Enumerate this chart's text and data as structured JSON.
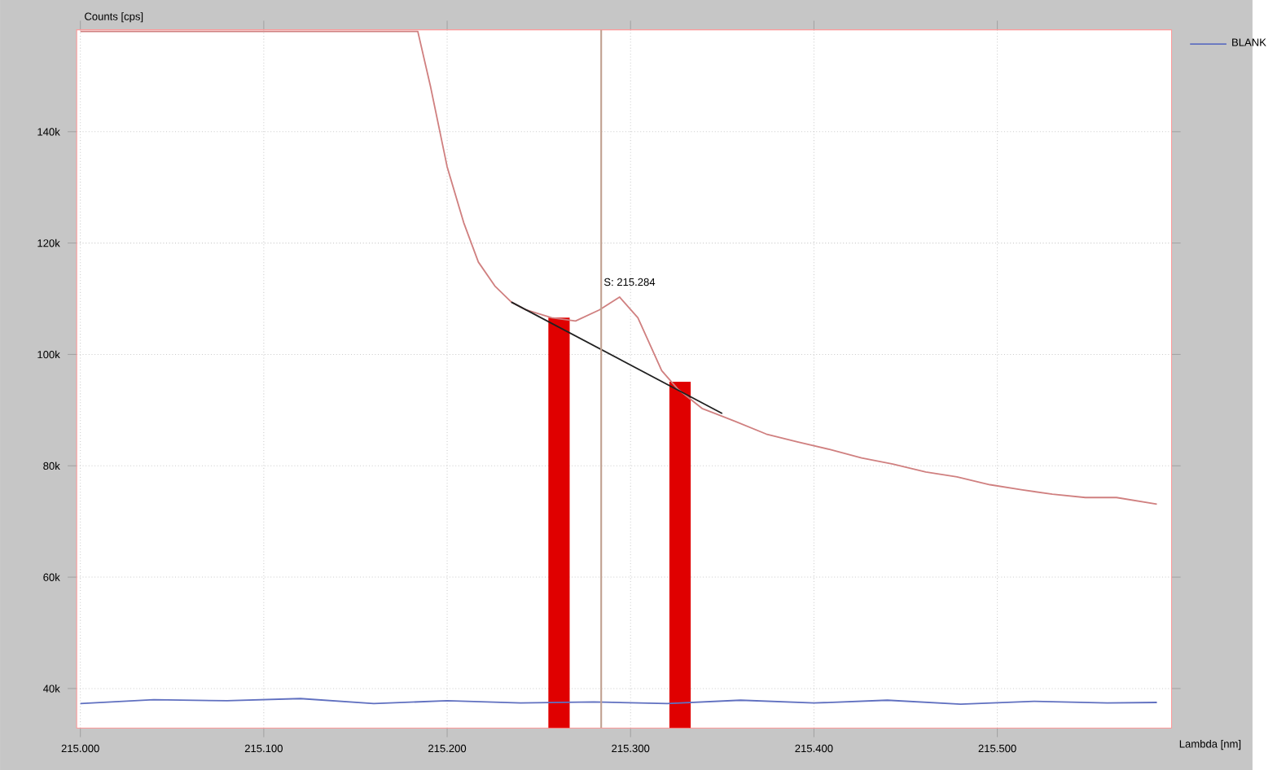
{
  "chart_data": {
    "type": "line",
    "xlabel": "Lambda [nm]",
    "ylabel": "Counts [cps]",
    "xlim": [
      214.998,
      215.595
    ],
    "ylim": [
      32900,
      158300
    ],
    "xticks": [
      {
        "value": 215.0,
        "label": "215.000"
      },
      {
        "value": 215.1,
        "label": "215.100"
      },
      {
        "value": 215.2,
        "label": "215.200"
      },
      {
        "value": 215.3,
        "label": "215.300"
      },
      {
        "value": 215.4,
        "label": "215.400"
      },
      {
        "value": 215.5,
        "label": "215.500"
      }
    ],
    "yticks": [
      {
        "value": 40000,
        "label": "40k"
      },
      {
        "value": 60000,
        "label": "60k"
      },
      {
        "value": 80000,
        "label": "80k"
      },
      {
        "value": 100000,
        "label": "100k"
      },
      {
        "value": 120000,
        "label": "120k"
      },
      {
        "value": 140000,
        "label": "140k"
      }
    ],
    "grid": true,
    "legend": "top right",
    "series": [
      {
        "type": "bar",
        "color": "#e00000",
        "x": [
          215.261,
          215.327
        ],
        "values": [
          106600,
          95100
        ]
      },
      {
        "color": "#d08080",
        "x": [
          215.0,
          215.043,
          215.087,
          215.13,
          215.184,
          215.191,
          215.2,
          215.209,
          215.217,
          215.226,
          215.235,
          215.243,
          215.257,
          215.27,
          215.283,
          215.294,
          215.304,
          215.317,
          215.326,
          215.339,
          215.357,
          215.374,
          215.391,
          215.409,
          215.426,
          215.443,
          215.461,
          215.478,
          215.496,
          215.513,
          215.53,
          215.548,
          215.565,
          215.587
        ],
        "values": [
          158000,
          158000,
          158000,
          158000,
          158000,
          148000,
          133700,
          123700,
          116600,
          112300,
          109400,
          108000,
          106600,
          106000,
          108000,
          110300,
          106600,
          97100,
          93700,
          90300,
          88000,
          85700,
          84300,
          82900,
          81400,
          80300,
          78900,
          78000,
          76600,
          75700,
          74900,
          74300,
          74300,
          73100
        ]
      },
      {
        "name": "BLANK",
        "color": "#6070c0",
        "x": [
          215.0,
          215.04,
          215.08,
          215.12,
          215.16,
          215.2,
          215.24,
          215.28,
          215.32,
          215.36,
          215.4,
          215.44,
          215.48,
          215.52,
          215.56,
          215.587
        ],
        "values": [
          37300,
          38000,
          37800,
          38200,
          37300,
          37800,
          37400,
          37600,
          37300,
          37900,
          37400,
          37900,
          37200,
          37700,
          37400,
          37500
        ]
      },
      {
        "color": "#202020",
        "x": [
          215.235,
          215.35
        ],
        "values": [
          109400,
          89400
        ]
      }
    ],
    "ref_lines": [
      {
        "axis": "x",
        "value": 215.284,
        "label": "S: 215.284",
        "color": "#c0a090"
      }
    ]
  }
}
